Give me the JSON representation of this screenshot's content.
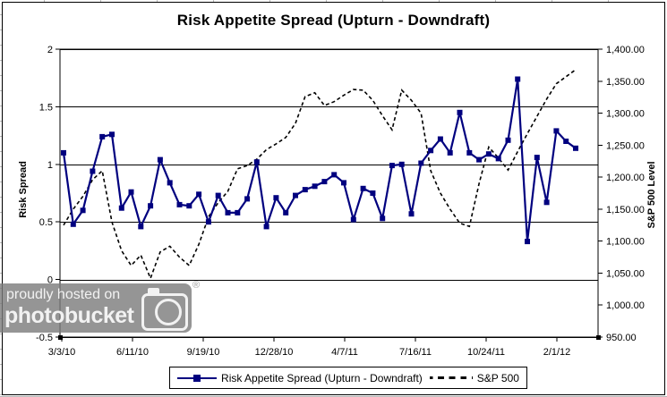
{
  "title": "Risk Appetite Spread (Upturn - Downdraft)",
  "watermark": {
    "line1": "proudly hosted on",
    "line2": "photobucket",
    "registered_mark": "®"
  },
  "legend": {
    "item1_label": "Risk Appetite Spread (Upturn - Downdraft)",
    "item2_label": "S&P 500"
  },
  "chart_data": {
    "type": "line",
    "title": "Risk Appetite Spread (Upturn - Downdraft)",
    "grid": "horizontal",
    "legend_position": "bottom",
    "left_axis": {
      "label": "Risk Spread",
      "min": -0.5,
      "max": 2,
      "ticks": [
        {
          "label": "2",
          "v": 2
        },
        {
          "label": "1.5",
          "v": 1.5
        },
        {
          "label": "1",
          "v": 1
        },
        {
          "label": "0.5",
          "v": 0.5
        },
        {
          "label": "0",
          "v": 0
        },
        {
          "label": "-0.5",
          "v": -0.5
        }
      ]
    },
    "right_axis": {
      "label": "S&P 500 Level",
      "min": 950,
      "max": 1400,
      "ticks": [
        {
          "label": "1,400.00",
          "v": 1400
        },
        {
          "label": "1,350.00",
          "v": 1350
        },
        {
          "label": "1,300.00",
          "v": 1300
        },
        {
          "label": "1,250.00",
          "v": 1250
        },
        {
          "label": "1,200.00",
          "v": 1200
        },
        {
          "label": "1,150.00",
          "v": 1150
        },
        {
          "label": "1,100.00",
          "v": 1100
        },
        {
          "label": "1,050.00",
          "v": 1050
        },
        {
          "label": "1,000.00",
          "v": 1000
        },
        {
          "label": "950.00",
          "v": 950
        }
      ]
    },
    "x_ticks": [
      "3/3/10",
      "6/11/10",
      "9/19/10",
      "12/28/10",
      "4/7/11",
      "7/16/11",
      "10/24/11",
      "2/1/12"
    ],
    "series": [
      {
        "name": "Risk Appetite Spread (Upturn - Downdraft)",
        "axis": "left",
        "style": "solid",
        "marker": "square",
        "color": "#00007f",
        "values": [
          1.1,
          0.48,
          0.6,
          0.94,
          1.24,
          1.26,
          0.62,
          0.76,
          0.46,
          0.64,
          1.04,
          0.84,
          0.65,
          0.64,
          0.74,
          0.5,
          0.73,
          0.58,
          0.58,
          0.7,
          1.02,
          0.46,
          0.71,
          0.58,
          0.73,
          0.78,
          0.81,
          0.85,
          0.91,
          0.84,
          0.52,
          0.79,
          0.75,
          0.53,
          0.99,
          1.0,
          0.57,
          1.01,
          1.12,
          1.22,
          1.1,
          1.45,
          1.1,
          1.04,
          1.09,
          1.05,
          1.21,
          1.74,
          0.33,
          1.06,
          0.67,
          1.29,
          1.2,
          1.14
        ]
      },
      {
        "name": "S&P 500",
        "axis": "right",
        "style": "dashed",
        "marker": "none",
        "color": "#000000",
        "values": [
          1125,
          1150,
          1170,
          1196,
          1210,
          1130,
          1085,
          1062,
          1078,
          1042,
          1083,
          1092,
          1075,
          1062,
          1095,
          1138,
          1160,
          1178,
          1213,
          1218,
          1228,
          1243,
          1252,
          1262,
          1284,
          1326,
          1332,
          1312,
          1318,
          1328,
          1337,
          1336,
          1320,
          1296,
          1274,
          1336,
          1320,
          1300,
          1210,
          1175,
          1150,
          1128,
          1123,
          1190,
          1247,
          1230,
          1211,
          1240,
          1268,
          1295,
          1322,
          1346,
          1357,
          1368
        ]
      }
    ]
  }
}
